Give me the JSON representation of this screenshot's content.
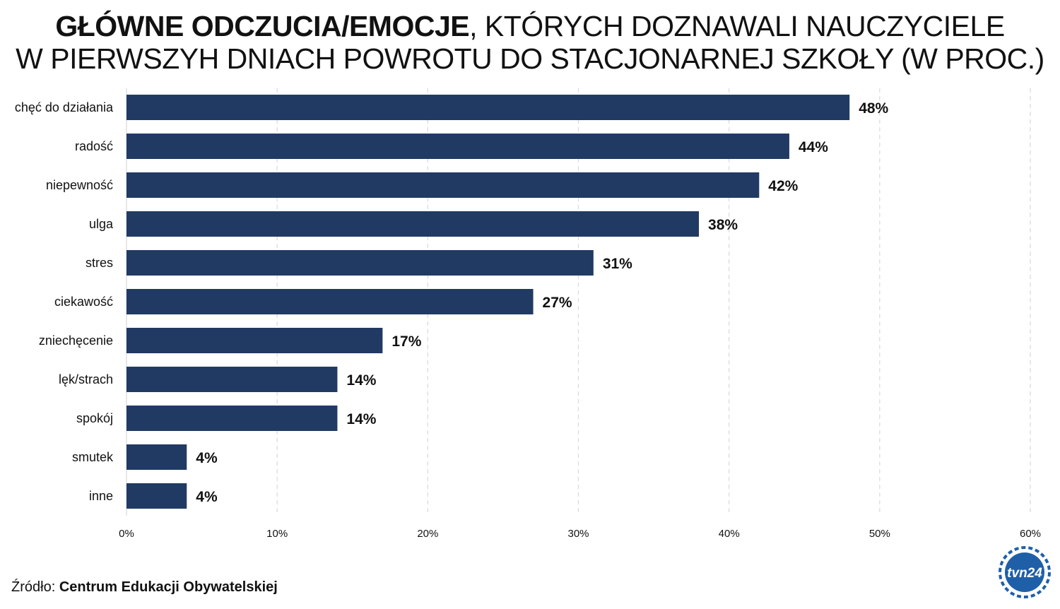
{
  "title": {
    "bold": "GŁÓWNE ODCZUCIA/EMOCJE",
    "rest": ", KTÓRYCH DOZNAWALI NAUCZYCIELE",
    "line2": "W PIERWSZYH DNIACH POWROTU DO STACJONARNEJ SZKOŁY (W PROC.)"
  },
  "source": {
    "prefix": "Źródło: ",
    "name": "Centrum Edukacji Obywatelskiej"
  },
  "logo": {
    "text": "tvn24",
    "icon": "tvn24-logo"
  },
  "colors": {
    "bar": "#213a63",
    "grid": "#d9d9d9",
    "text": "#111111",
    "logo_blue": "#1f5fa8"
  },
  "chart_data": {
    "type": "bar",
    "orientation": "horizontal",
    "title": "GŁÓWNE ODCZUCIA/EMOCJE, KTÓRYCH DOZNAWALI NAUCZYCIELE W PIERWSZYH DNIACH POWROTU DO STACJONARNEJ SZKOŁY (W PROC.)",
    "categories": [
      "chęć do działania",
      "radość",
      "niepewność",
      "ulga",
      "stres",
      "ciekawość",
      "zniechęcenie",
      "lęk/strach",
      "spokój",
      "smutek",
      "inne"
    ],
    "values": [
      48,
      44,
      42,
      38,
      31,
      27,
      17,
      14,
      14,
      4,
      4
    ],
    "value_labels": [
      "48%",
      "44%",
      "42%",
      "38%",
      "31%",
      "27%",
      "17%",
      "14%",
      "14%",
      "4%",
      "4%"
    ],
    "xlim": [
      0,
      60
    ],
    "x_ticks": [
      0,
      10,
      20,
      30,
      40,
      50,
      60
    ],
    "x_tick_labels": [
      "0%",
      "10%",
      "20%",
      "30%",
      "40%",
      "50%",
      "60%"
    ],
    "grid": "vertical-dashed",
    "legend": "none"
  }
}
